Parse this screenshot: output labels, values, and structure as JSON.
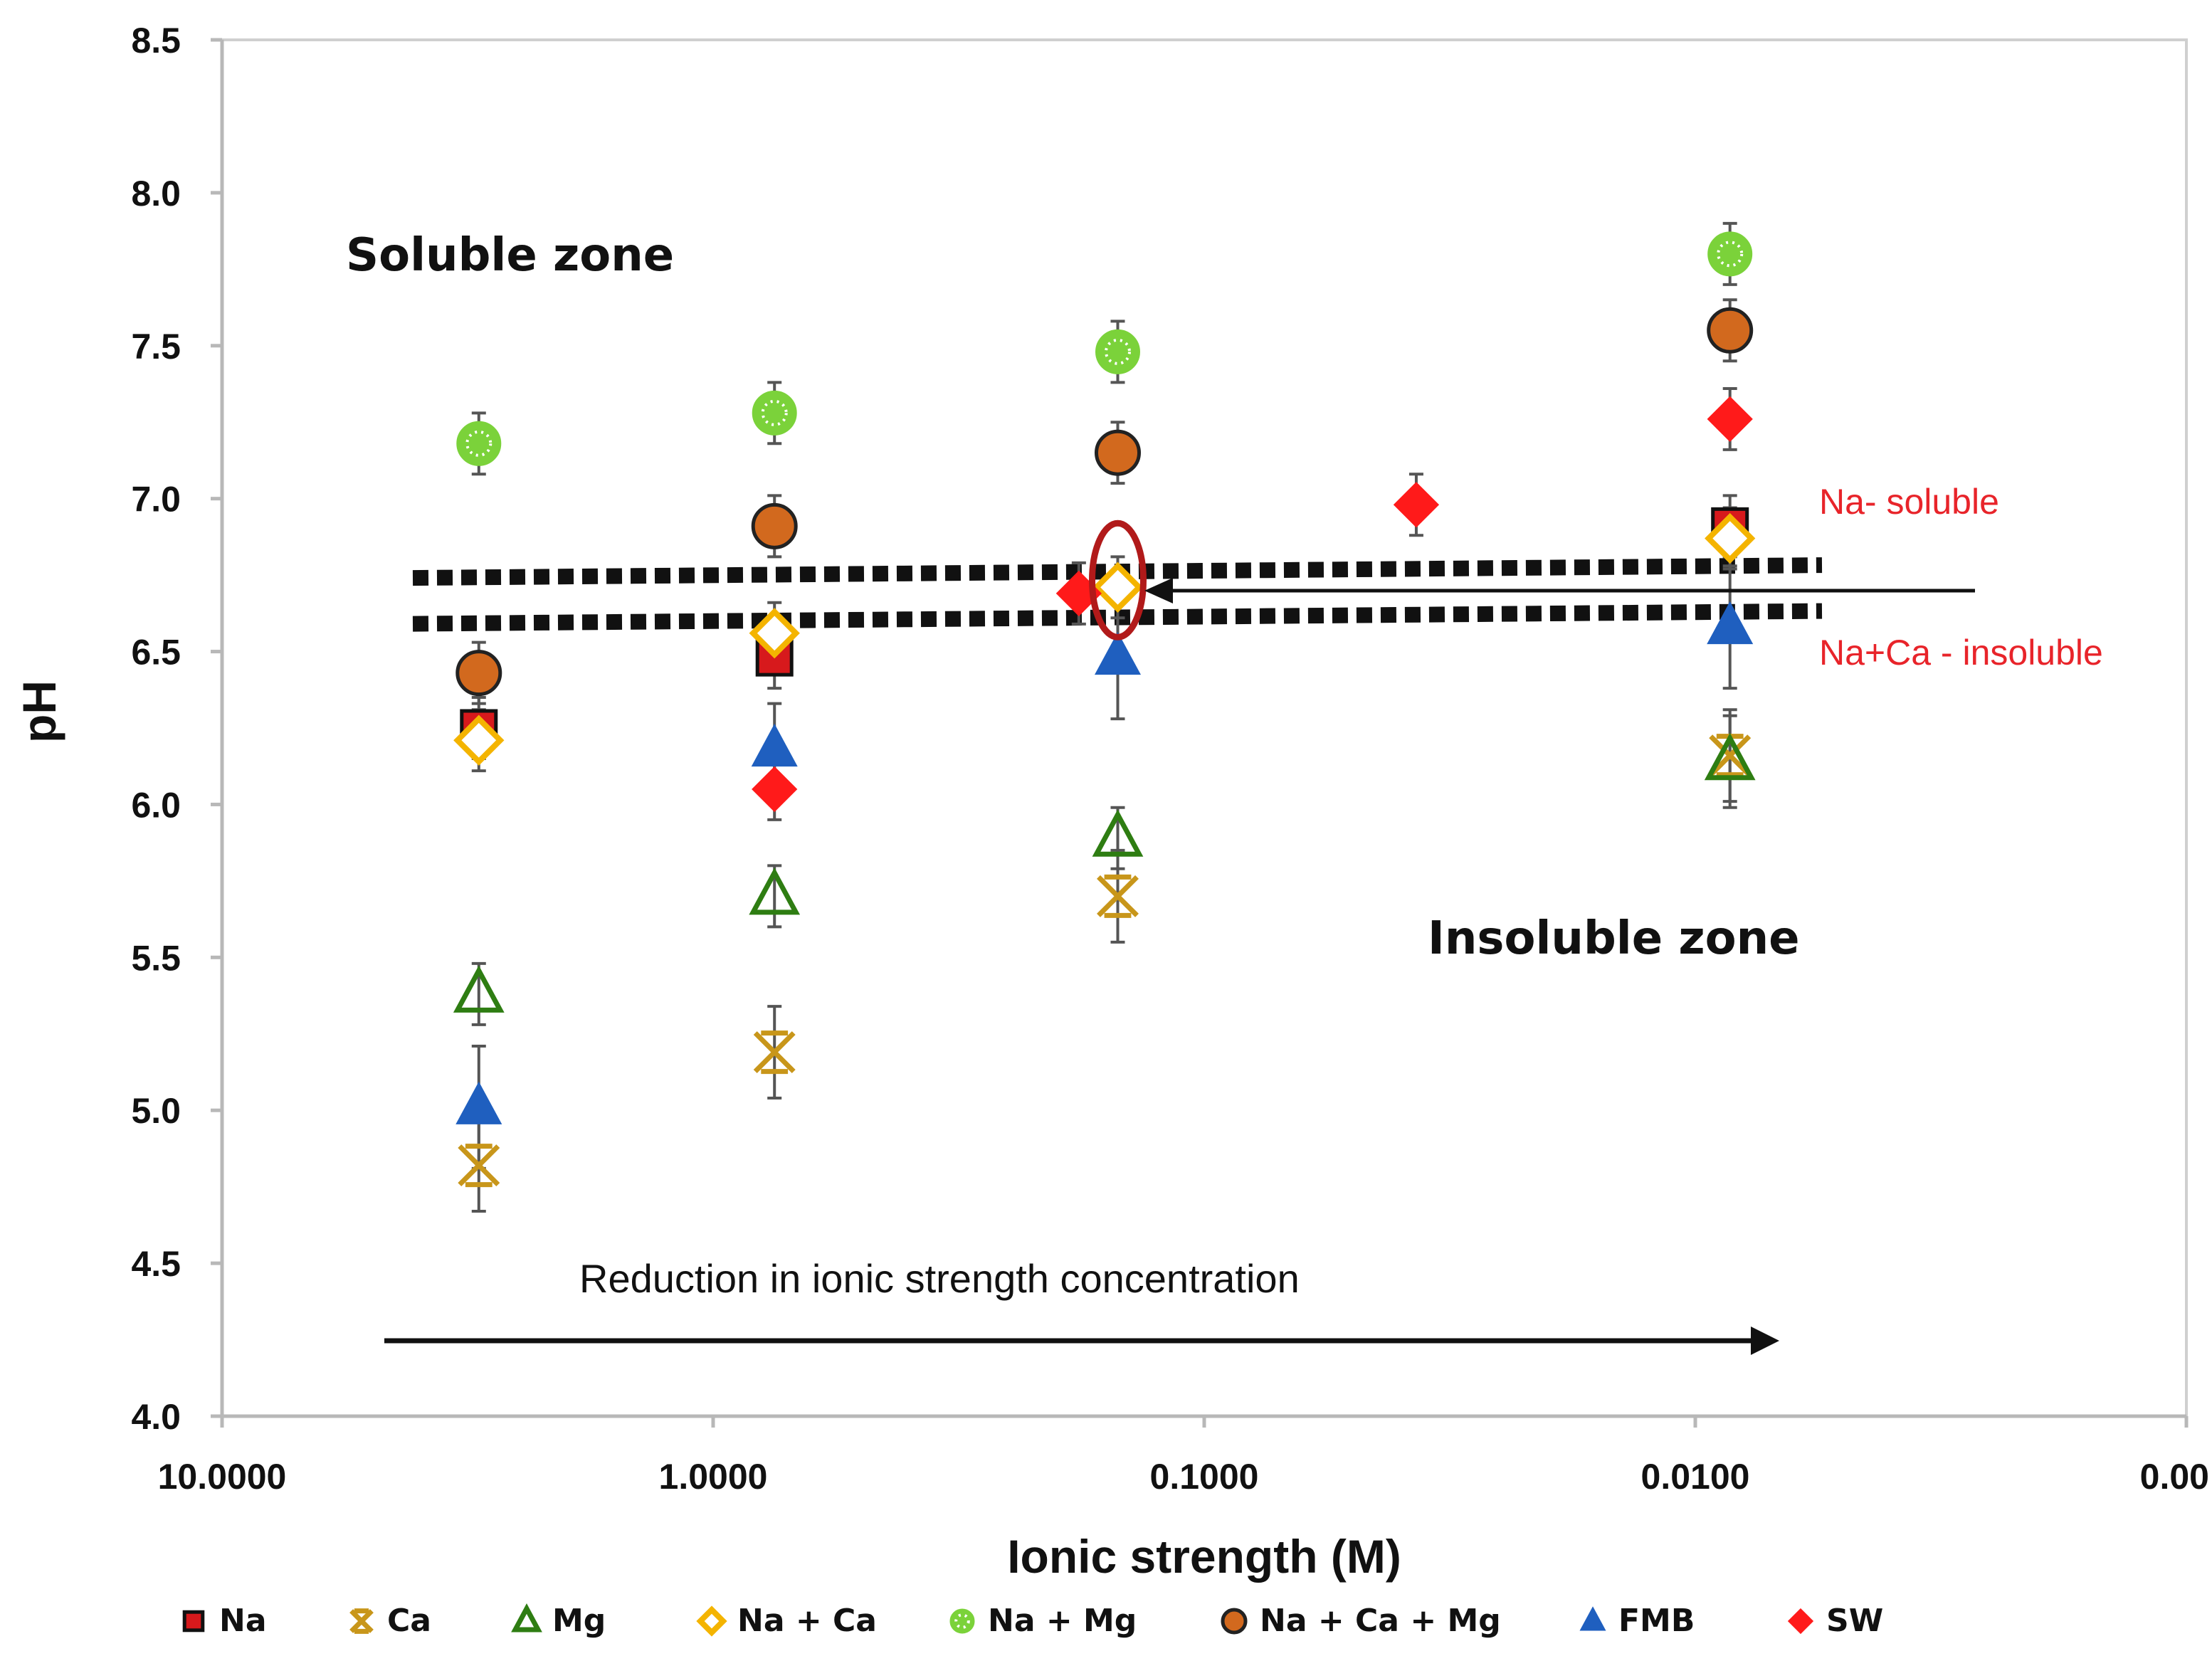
{
  "chart_data": {
    "type": "scatter",
    "xlabel": "Ionic strength (M)",
    "ylabel": "pH",
    "xscale": "log-reversed",
    "xlim": [
      10,
      0.001
    ],
    "ylim": [
      4.0,
      8.5
    ],
    "grid": false,
    "y_ticks": [
      "4.0",
      "4.5",
      "5.0",
      "5.5",
      "6.0",
      "6.5",
      "7.0",
      "7.5",
      "8.0",
      "8.5"
    ],
    "x_ticks": [
      {
        "value": 10,
        "label": "10.0000"
      },
      {
        "value": 1,
        "label": "1.0000"
      },
      {
        "value": 0.1,
        "label": "0.1000"
      },
      {
        "value": 0.01,
        "label": "0.0100"
      },
      {
        "value": 0.001,
        "label": "0.00"
      }
    ],
    "legend_position": "bottom",
    "series": [
      {
        "name": "Na",
        "marker": "square",
        "fill": "#d7191c",
        "stroke": "#111111",
        "points": [
          {
            "x": 3.0,
            "y": 6.25
          },
          {
            "x": 0.75,
            "y": 6.48
          },
          {
            "x": 0.0085,
            "y": 6.91
          }
        ],
        "errors": [
          0.1,
          0.1,
          0.1
        ]
      },
      {
        "name": "Ca",
        "marker": "star",
        "fill": "#c8961a",
        "stroke": "#c8961a",
        "points": [
          {
            "x": 3.0,
            "y": 4.82
          },
          {
            "x": 0.75,
            "y": 5.19
          },
          {
            "x": 0.15,
            "y": 5.7
          },
          {
            "x": 0.0085,
            "y": 6.16
          }
        ],
        "errors": [
          0.15,
          0.15,
          0.15,
          0.15
        ]
      },
      {
        "name": "Mg",
        "marker": "triangle-open",
        "fill": "none",
        "stroke": "#2e7d12",
        "points": [
          {
            "x": 3.0,
            "y": 5.38
          },
          {
            "x": 0.75,
            "y": 5.7
          },
          {
            "x": 0.15,
            "y": 5.89
          },
          {
            "x": 0.0085,
            "y": 6.14
          }
        ],
        "errors": [
          0.1,
          0.1,
          0.1,
          0.15
        ]
      },
      {
        "name": "Na + Ca",
        "marker": "diamond-open",
        "fill": "#ffffff",
        "stroke": "#f4b400",
        "points": [
          {
            "x": 3.0,
            "y": 6.21
          },
          {
            "x": 0.75,
            "y": 6.56
          },
          {
            "x": 0.15,
            "y": 6.71
          },
          {
            "x": 0.0085,
            "y": 6.87
          }
        ],
        "errors": [
          0.1,
          0.1,
          0.1,
          0.1
        ]
      },
      {
        "name": "Na + Mg",
        "marker": "circle-dotted",
        "fill": "#7bd23a",
        "stroke": "#7bd23a",
        "points": [
          {
            "x": 3.0,
            "y": 7.18
          },
          {
            "x": 0.75,
            "y": 7.28
          },
          {
            "x": 0.15,
            "y": 7.48
          },
          {
            "x": 0.0085,
            "y": 7.8
          }
        ],
        "errors": [
          0.1,
          0.1,
          0.1,
          0.1
        ]
      },
      {
        "name": "Na + Ca + Mg",
        "marker": "circle",
        "fill": "#d2691e",
        "stroke": "#222222",
        "points": [
          {
            "x": 3.0,
            "y": 6.43
          },
          {
            "x": 0.75,
            "y": 6.91
          },
          {
            "x": 0.15,
            "y": 7.15
          },
          {
            "x": 0.0085,
            "y": 7.55
          }
        ],
        "errors": [
          0.1,
          0.1,
          0.1,
          0.1
        ]
      },
      {
        "name": "FMB",
        "marker": "triangle",
        "fill": "#1f5fbf",
        "stroke": "#1f5fbf",
        "points": [
          {
            "x": 3.0,
            "y": 5.01
          },
          {
            "x": 0.75,
            "y": 6.18
          },
          {
            "x": 0.15,
            "y": 6.48
          },
          {
            "x": 0.0085,
            "y": 6.58
          }
        ],
        "errors": [
          0.2,
          0.15,
          0.2,
          0.2
        ]
      },
      {
        "name": "SW",
        "marker": "diamond",
        "fill": "#ff1a1a",
        "stroke": "#ff1a1a",
        "points": [
          {
            "x": 0.75,
            "y": 6.05
          },
          {
            "x": 0.18,
            "y": 6.69
          },
          {
            "x": 0.037,
            "y": 6.98
          },
          {
            "x": 0.0085,
            "y": 7.26
          }
        ],
        "errors": [
          0.1,
          0.1,
          0.1,
          0.1
        ]
      }
    ],
    "annotations": {
      "soluble_zone": "Soluble zone",
      "insoluble_zone": "Insoluble zone",
      "na_soluble": "Na- soluble",
      "naca_insoluble": "Na+Ca - insoluble",
      "reduction_note": "Reduction in ionic strength concentration"
    },
    "boundary_lines_ph": [
      6.75,
      6.6
    ],
    "highlight_point": {
      "x": 0.15,
      "y": 6.71,
      "color": "#b11a1a"
    }
  }
}
